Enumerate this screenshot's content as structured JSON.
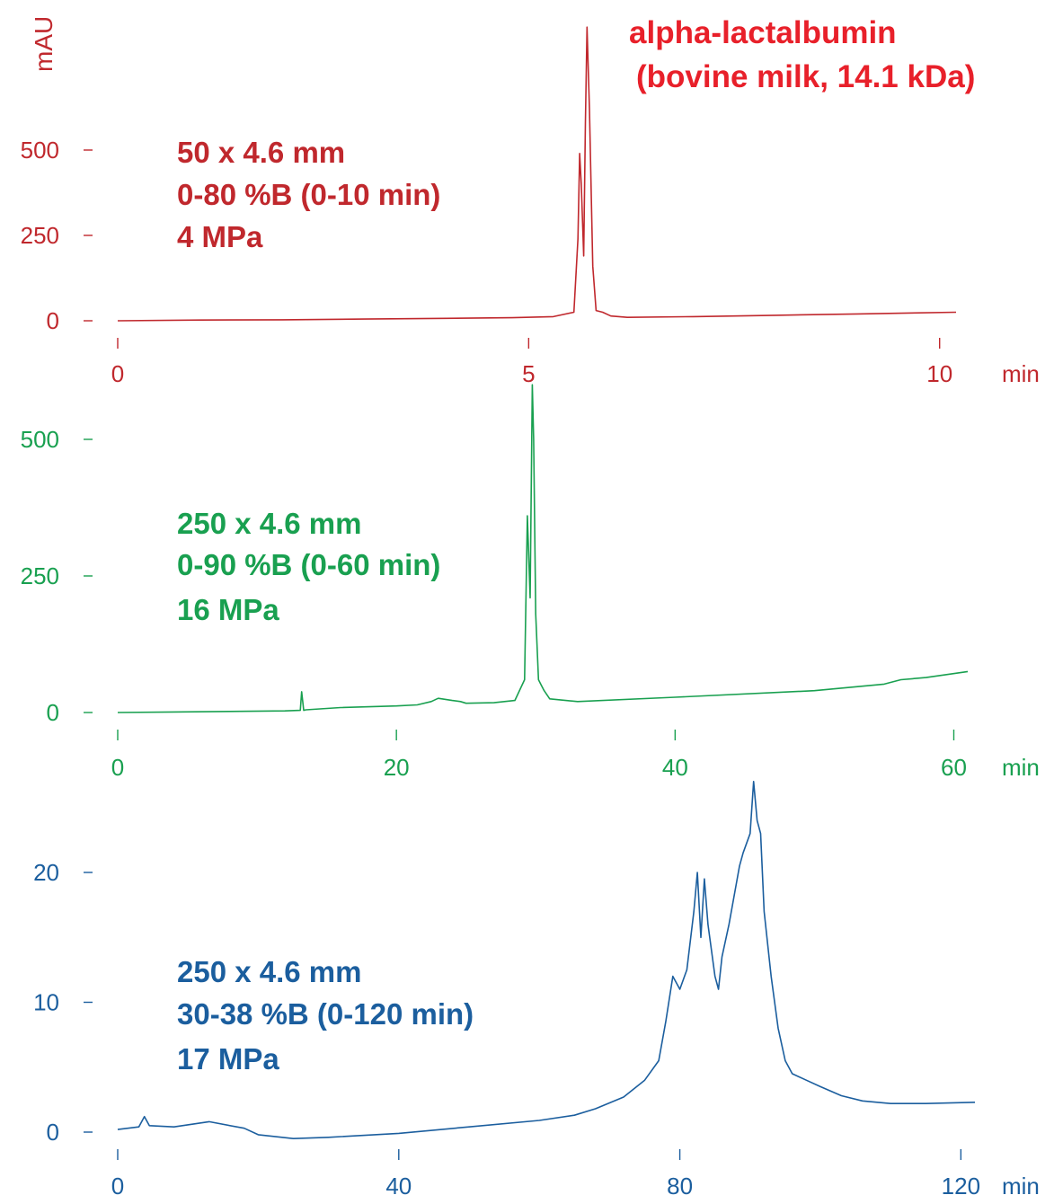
{
  "colors": {
    "red": "#c0282d",
    "title_red": "#e8202a",
    "green": "#19a050",
    "blue": "#1b5e9e"
  },
  "title": {
    "line1": "alpha-lactalbumin",
    "line2": "(bovine milk, 14.1 kDa)"
  },
  "chart_data": [
    {
      "type": "line",
      "name": "panel-top",
      "ylabel": "mAU",
      "xunit": "min",
      "xlim": [
        0,
        10.2
      ],
      "ylim": [
        0,
        520
      ],
      "yticks": [
        0,
        250,
        500
      ],
      "xticks": [
        0,
        5,
        10
      ],
      "conditions": [
        "50 x 4.6 mm",
        "0-80 %B (0-10 min)",
        "4 MPa"
      ],
      "series": [
        {
          "x": [
            0,
            1,
            2,
            3,
            4,
            4.8,
            5.3,
            5.55,
            5.6,
            5.62,
            5.64,
            5.67,
            5.69,
            5.71,
            5.74,
            5.78,
            5.82,
            5.9,
            6.0,
            6.2,
            7,
            8,
            9,
            10.2
          ],
          "y": [
            0,
            2,
            3,
            5,
            7,
            9,
            12,
            25,
            240,
            490,
            400,
            190,
            580,
            860,
            620,
            160,
            30,
            25,
            14,
            10,
            12,
            16,
            20,
            25
          ]
        }
      ]
    },
    {
      "type": "line",
      "name": "panel-middle",
      "xunit": "min",
      "xlim": [
        0,
        61
      ],
      "ylim": [
        0,
        520
      ],
      "yticks": [
        0,
        250,
        500
      ],
      "xticks": [
        0,
        20,
        40,
        60
      ],
      "conditions": [
        "250 x 4.6 mm",
        "0-90 %B (0-60 min)",
        "16 MPa"
      ],
      "series": [
        {
          "x": [
            0,
            4,
            8,
            12,
            13.1,
            13.2,
            13.35,
            13.5,
            16,
            20,
            21.5,
            22.5,
            23,
            24,
            24.6,
            25,
            27,
            28.5,
            29.2,
            29.4,
            29.6,
            29.75,
            29.85,
            30.0,
            30.2,
            30.4,
            30.6,
            31,
            33,
            40,
            50,
            55,
            56.2,
            58,
            61
          ],
          "y": [
            0,
            1,
            2,
            3,
            4,
            38,
            4,
            5,
            9,
            12,
            14,
            20,
            26,
            22,
            20,
            17,
            18,
            22,
            60,
            360,
            210,
            600,
            500,
            180,
            60,
            50,
            40,
            25,
            20,
            28,
            40,
            52,
            60,
            64,
            75
          ]
        }
      ]
    },
    {
      "type": "line",
      "name": "panel-bottom",
      "xunit": "min",
      "xlim": [
        0,
        122
      ],
      "ylim": [
        0,
        26
      ],
      "yticks": [
        0,
        10,
        20
      ],
      "xticks": [
        0,
        40,
        80,
        120
      ],
      "conditions": [
        "250 x 4.6 mm",
        "30-38 %B (0-120 min)",
        "17 MPa"
      ],
      "series": [
        {
          "x": [
            0,
            3,
            3.8,
            4.5,
            8,
            13,
            18,
            20,
            25,
            30,
            40,
            50,
            60,
            65,
            68,
            72,
            75,
            77,
            78,
            79,
            80,
            81,
            82,
            82.5,
            83,
            83.5,
            84,
            85,
            85.5,
            86,
            87,
            88,
            88.5,
            89,
            90,
            90.5,
            91,
            91.5,
            92,
            93,
            94,
            95,
            96,
            98,
            100,
            103,
            106,
            110,
            115,
            122
          ],
          "y": [
            0.2,
            0.4,
            1.2,
            0.5,
            0.4,
            0.8,
            0.3,
            -0.2,
            -0.5,
            -0.4,
            -0.1,
            0.4,
            0.9,
            1.3,
            1.8,
            2.7,
            4.0,
            5.5,
            8.5,
            12,
            11,
            12.5,
            17,
            20,
            15,
            19.5,
            16,
            12,
            11,
            13.5,
            16,
            19,
            20.5,
            21.5,
            23,
            27,
            24,
            23,
            17,
            12,
            8,
            5.5,
            4.5,
            4,
            3.5,
            2.8,
            2.4,
            2.2,
            2.2,
            2.3
          ]
        }
      ]
    }
  ]
}
